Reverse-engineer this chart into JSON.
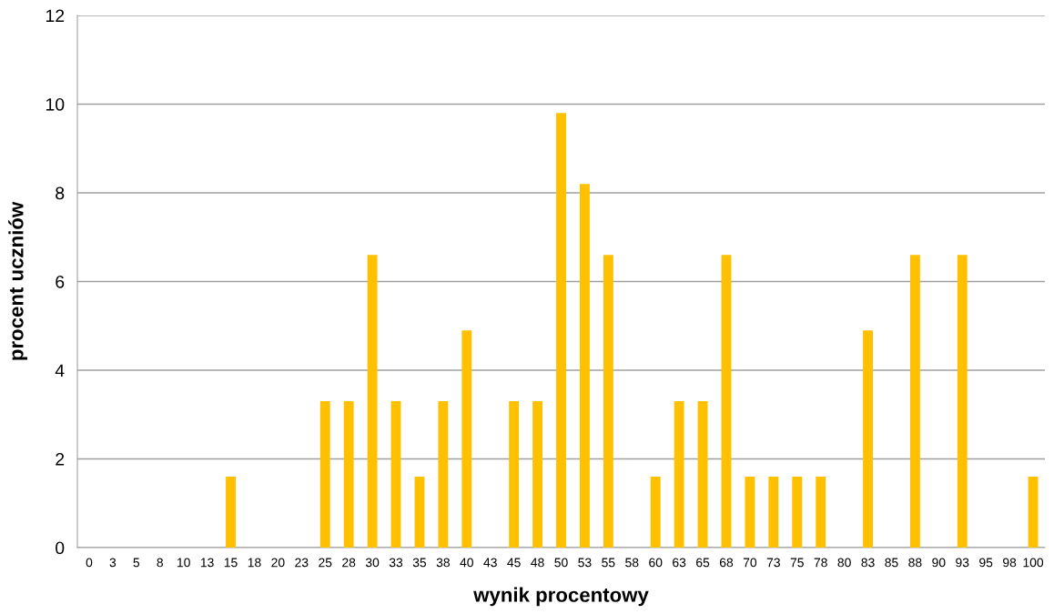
{
  "chart_data": {
    "type": "bar",
    "xlabel": "wynik procentowy",
    "ylabel": "procent uczniów",
    "categories": [
      "0",
      "3",
      "5",
      "8",
      "10",
      "13",
      "15",
      "18",
      "20",
      "23",
      "25",
      "28",
      "30",
      "33",
      "35",
      "38",
      "40",
      "43",
      "45",
      "48",
      "50",
      "53",
      "55",
      "58",
      "60",
      "63",
      "65",
      "68",
      "70",
      "73",
      "75",
      "78",
      "80",
      "83",
      "85",
      "88",
      "90",
      "93",
      "95",
      "98",
      "100"
    ],
    "values": [
      0,
      0,
      0,
      0,
      0,
      0,
      1.6,
      0,
      0,
      0,
      3.3,
      3.3,
      6.6,
      3.3,
      1.6,
      3.3,
      4.9,
      0,
      3.3,
      3.3,
      9.8,
      8.2,
      6.6,
      0,
      1.6,
      3.3,
      3.3,
      6.6,
      1.6,
      1.6,
      1.6,
      1.6,
      0,
      4.9,
      0,
      6.6,
      0,
      6.6,
      0,
      0,
      1.6
    ],
    "color": "#ffc000",
    "ylim": [
      0,
      12
    ],
    "yticks": [
      0,
      2,
      4,
      6,
      8,
      10,
      12
    ],
    "grid": "y",
    "legend": false
  }
}
